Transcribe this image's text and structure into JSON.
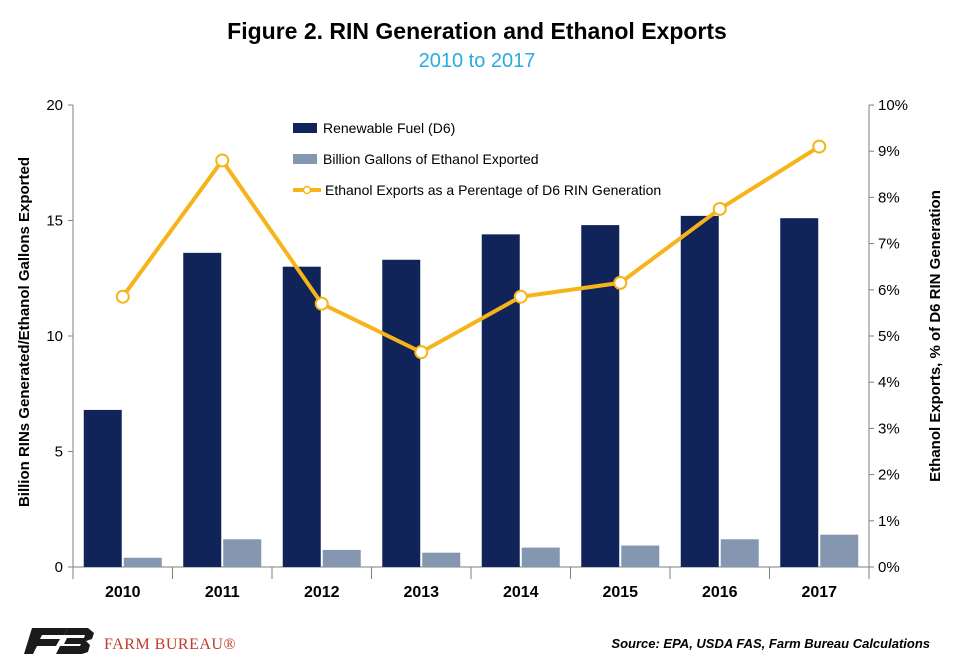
{
  "title": "Figure 2. RIN Generation and Ethanol Exports",
  "subtitle": "2010 to 2017",
  "source": "Source: EPA, USDA FAS, Farm Bureau Calculations",
  "logo": {
    "text": "FARM BUREAU®",
    "icon": "farm-bureau-fb-logo"
  },
  "colors": {
    "d6": "#112459",
    "exports": "#8496b0",
    "line": "#f6b41a",
    "subtitle": "#29abe2"
  },
  "chart_data": {
    "type": "bar",
    "categories": [
      "2010",
      "2011",
      "2012",
      "2013",
      "2014",
      "2015",
      "2016",
      "2017"
    ],
    "series": [
      {
        "name": "Renewable Fuel (D6)",
        "type": "bar",
        "axis": "left",
        "values": [
          6.8,
          13.6,
          13.0,
          13.3,
          14.4,
          14.8,
          15.2,
          15.1
        ]
      },
      {
        "name": "Billion Gallons of Ethanol Exported",
        "type": "bar",
        "axis": "left",
        "values": [
          0.4,
          1.2,
          0.74,
          0.62,
          0.84,
          0.93,
          1.2,
          1.4
        ]
      },
      {
        "name": "Ethanol Exports as a Perentage of D6 RIN Generation",
        "type": "line",
        "axis": "right",
        "values": [
          5.85,
          8.8,
          5.7,
          4.65,
          5.85,
          6.15,
          7.75,
          9.1
        ]
      }
    ],
    "ylabel": "Billion RINs Generated/Ethanol Gallons Exported",
    "ylabel_right": "Ethanol Exports, % of D6 RIN Generation",
    "ylim": [
      0,
      20
    ],
    "yticks": [
      "0",
      "5",
      "10",
      "15",
      "20"
    ],
    "ylim_right": [
      0,
      10
    ],
    "yticks_right": [
      "0%",
      "1%",
      "2%",
      "3%",
      "4%",
      "5%",
      "6%",
      "7%",
      "8%",
      "9%",
      "10%"
    ],
    "grid": false,
    "legend_position": "top-center"
  }
}
